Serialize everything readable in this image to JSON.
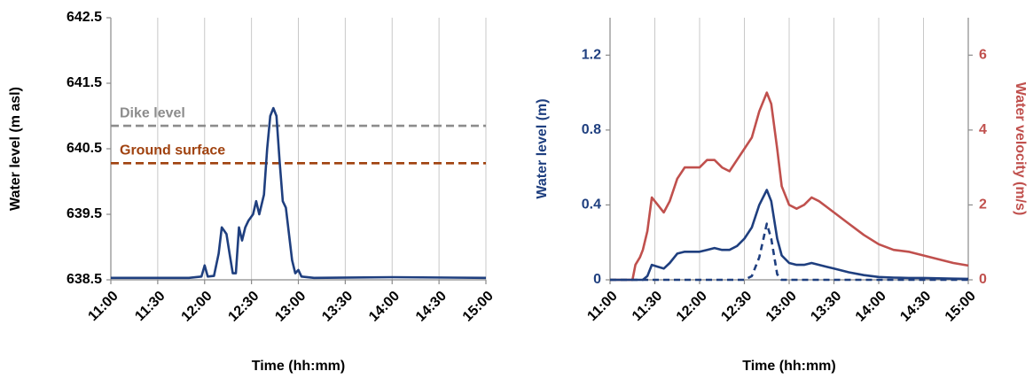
{
  "chart_data": [
    {
      "type": "line",
      "ylabel": "Water level (m asl)",
      "xlabel": "Time (hh:mm)",
      "xlim": [
        "11:00",
        "15:00"
      ],
      "xticks": [
        "11:00",
        "11:30",
        "12:00",
        "12:30",
        "13:00",
        "13:30",
        "14:00",
        "14:30",
        "15:00"
      ],
      "ylim": [
        638.5,
        642.5
      ],
      "yticks": [
        638.5,
        639.5,
        640.5,
        641.5,
        642.5
      ],
      "grid": true,
      "x": [
        "11:00",
        "11:50",
        "11:58",
        "12:00",
        "12:02",
        "12:06",
        "12:09",
        "12:11",
        "12:14",
        "12:16",
        "12:18",
        "12:20",
        "12:22",
        "12:24",
        "12:26",
        "12:28",
        "12:31",
        "12:33",
        "12:35",
        "12:38",
        "12:40",
        "12:42",
        "12:44",
        "12:46",
        "12:48",
        "12:50",
        "12:52",
        "12:54",
        "12:56",
        "12:58",
        "13:00",
        "13:02",
        "13:10",
        "14:00",
        "15:00"
      ],
      "series": [
        {
          "color": "#1f3f7f",
          "values": [
            638.53,
            638.53,
            638.55,
            638.72,
            638.55,
            638.56,
            638.9,
            639.3,
            639.2,
            638.9,
            638.6,
            638.6,
            639.3,
            639.1,
            639.3,
            639.4,
            639.5,
            639.7,
            639.5,
            639.8,
            640.5,
            641.0,
            641.12,
            641.0,
            640.3,
            639.7,
            639.6,
            639.2,
            638.8,
            638.6,
            638.65,
            638.55,
            638.53,
            638.54,
            638.53
          ]
        }
      ],
      "hlines": [
        {
          "label": "Dike level",
          "value": 640.85,
          "color": "#8c8c8c"
        },
        {
          "label": "Ground surface",
          "value": 640.28,
          "color": "#a0420f"
        }
      ]
    },
    {
      "type": "line",
      "ylabel": "Water level (m)",
      "y2label": "Water velocity (m/s)",
      "xlabel": "Time (hh:mm)",
      "xlim": [
        "11:00",
        "15:00"
      ],
      "xticks": [
        "11:00",
        "11:30",
        "12:00",
        "12:30",
        "13:00",
        "13:30",
        "14:00",
        "14:30",
        "15:00"
      ],
      "ylim": [
        0,
        1.4
      ],
      "yticks": [
        0,
        0.4,
        0.8,
        1.2
      ],
      "y2lim": [
        0,
        7
      ],
      "y2ticks": [
        0,
        2,
        4,
        6
      ],
      "grid": true,
      "x": [
        "11:00",
        "11:15",
        "11:17",
        "11:20",
        "11:22",
        "11:25",
        "11:28",
        "11:32",
        "11:36",
        "11:40",
        "11:45",
        "11:50",
        "11:55",
        "12:00",
        "12:05",
        "12:10",
        "12:15",
        "12:20",
        "12:25",
        "12:30",
        "12:35",
        "12:40",
        "12:45",
        "12:48",
        "12:52",
        "12:55",
        "13:00",
        "13:05",
        "13:10",
        "13:15",
        "13:20",
        "13:25",
        "13:30",
        "13:40",
        "13:50",
        "14:00",
        "14:10",
        "14:20",
        "14:30",
        "14:40",
        "14:50",
        "15:00"
      ],
      "series": [
        {
          "color": "#c0504d",
          "axis": "y2",
          "values": [
            0,
            0,
            0.4,
            0.6,
            0.8,
            1.3,
            2.2,
            2.0,
            1.8,
            2.1,
            2.7,
            3.0,
            3.0,
            3.0,
            3.2,
            3.2,
            3.0,
            2.9,
            3.2,
            3.5,
            3.8,
            4.5,
            5.0,
            4.7,
            3.5,
            2.5,
            2.0,
            1.9,
            2.0,
            2.2,
            2.1,
            1.95,
            1.8,
            1.5,
            1.2,
            0.95,
            0.8,
            0.75,
            0.65,
            0.55,
            0.45,
            0.38
          ]
        },
        {
          "color": "#1f3f7f",
          "values": [
            0,
            0,
            0,
            0,
            0,
            0.02,
            0.08,
            0.07,
            0.06,
            0.09,
            0.14,
            0.15,
            0.15,
            0.15,
            0.16,
            0.17,
            0.16,
            0.16,
            0.18,
            0.22,
            0.28,
            0.4,
            0.48,
            0.42,
            0.22,
            0.13,
            0.09,
            0.08,
            0.08,
            0.09,
            0.08,
            0.07,
            0.06,
            0.04,
            0.025,
            0.015,
            0.012,
            0.01,
            0.01,
            0.008,
            0.006,
            0.005
          ]
        },
        {
          "color": "#1f3f7f",
          "dashed": true,
          "values": [
            0,
            0,
            0,
            0,
            0,
            0,
            0,
            0,
            0,
            0,
            0,
            0,
            0,
            0,
            0,
            0,
            0,
            0,
            0,
            0,
            0.02,
            0.12,
            0.3,
            0.22,
            0.03,
            0,
            0,
            0,
            0,
            0,
            0,
            0,
            0,
            0,
            0,
            0,
            0,
            0,
            0,
            0,
            0,
            0
          ]
        }
      ]
    }
  ]
}
